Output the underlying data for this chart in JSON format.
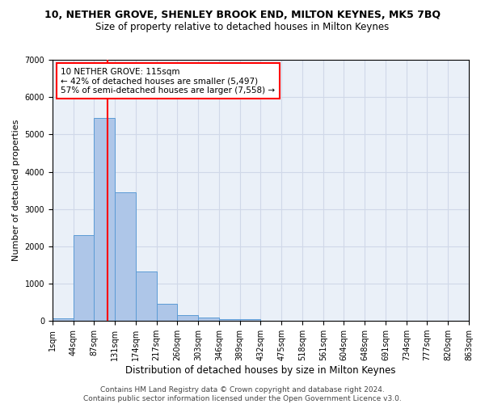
{
  "title": "10, NETHER GROVE, SHENLEY BROOK END, MILTON KEYNES, MK5 7BQ",
  "subtitle": "Size of property relative to detached houses in Milton Keynes",
  "xlabel": "Distribution of detached houses by size in Milton Keynes",
  "ylabel": "Number of detached properties",
  "bar_values": [
    75,
    2300,
    5450,
    3450,
    1320,
    460,
    155,
    85,
    55,
    40,
    0,
    0,
    0,
    0,
    0,
    0,
    0,
    0,
    0,
    0
  ],
  "bar_labels": [
    "1sqm",
    "44sqm",
    "87sqm",
    "131sqm",
    "174sqm",
    "217sqm",
    "260sqm",
    "303sqm",
    "346sqm",
    "389sqm",
    "432sqm",
    "475sqm",
    "518sqm",
    "561sqm",
    "604sqm",
    "648sqm",
    "691sqm",
    "734sqm",
    "777sqm",
    "820sqm",
    "863sqm"
  ],
  "bar_color": "#aec6e8",
  "bar_edge_color": "#5b9bd5",
  "vline_color": "red",
  "annotation_text": "10 NETHER GROVE: 115sqm\n← 42% of detached houses are smaller (5,497)\n57% of semi-detached houses are larger (7,558) →",
  "annotation_box_color": "white",
  "annotation_box_edge": "red",
  "ylim": [
    0,
    7000
  ],
  "yticks": [
    0,
    1000,
    2000,
    3000,
    4000,
    5000,
    6000,
    7000
  ],
  "grid_color": "#d0d8e8",
  "bg_color": "#eaf0f8",
  "footer": "Contains HM Land Registry data © Crown copyright and database right 2024.\nContains public sector information licensed under the Open Government Licence v3.0.",
  "title_fontsize": 9,
  "subtitle_fontsize": 8.5,
  "xlabel_fontsize": 8.5,
  "ylabel_fontsize": 8,
  "tick_fontsize": 7,
  "footer_fontsize": 6.5,
  "annotation_fontsize": 7.5
}
